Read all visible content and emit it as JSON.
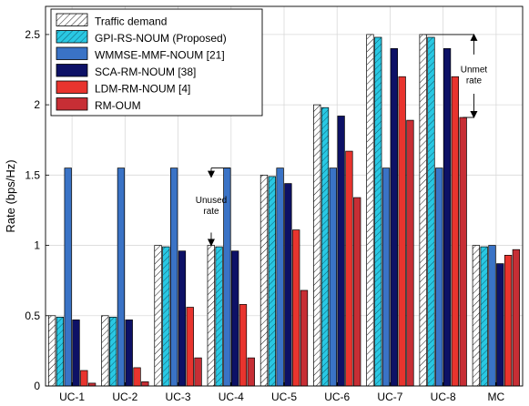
{
  "chart_data": {
    "type": "bar",
    "title": "",
    "xlabel": "",
    "ylabel": "Rate (bps/Hz)",
    "ylim": [
      0,
      2.7
    ],
    "yticks": [
      "0",
      "0.5",
      "1",
      "1.5",
      "2",
      "2.5"
    ],
    "grid": true,
    "legend_position": "top-left",
    "categories": [
      "UC-1",
      "UC-2",
      "UC-3",
      "UC-4",
      "UC-5",
      "UC-6",
      "UC-7",
      "UC-8",
      "MC"
    ],
    "series": [
      {
        "name": "Traffic demand",
        "color": "#ffffff",
        "pattern": "hatch",
        "values": [
          0.5,
          0.5,
          1.0,
          1.0,
          1.5,
          2.0,
          2.5,
          2.5,
          1.0
        ]
      },
      {
        "name": "GPI-RS-NOUM (Proposed)",
        "color": "#29c8e3",
        "pattern": "hatch",
        "values": [
          0.49,
          0.49,
          0.99,
          0.99,
          1.49,
          1.98,
          2.48,
          2.48,
          0.99
        ]
      },
      {
        "name": "WMMSE-MMF-NOUM [21]",
        "color": "#3a73c6",
        "values": [
          1.55,
          1.55,
          1.55,
          1.55,
          1.55,
          1.55,
          1.55,
          1.55,
          1.0
        ]
      },
      {
        "name": "SCA-RM-NOUM [38]",
        "color": "#0d1166",
        "values": [
          0.47,
          0.47,
          0.96,
          0.96,
          1.44,
          1.92,
          2.4,
          2.4,
          0.87
        ]
      },
      {
        "name": "LDM-RM-NOUM [4]",
        "color": "#e8342e",
        "values": [
          0.11,
          0.13,
          0.56,
          0.58,
          1.11,
          1.67,
          2.2,
          2.2,
          0.93
        ]
      },
      {
        "name": "RM-OUM",
        "color": "#c72e35",
        "values": [
          0.02,
          0.03,
          0.2,
          0.2,
          0.68,
          1.34,
          1.89,
          1.91,
          0.97
        ]
      }
    ],
    "annotations": [
      {
        "text_lines": [
          "Unused",
          "rate"
        ],
        "category": "UC-4",
        "from": 1.0,
        "to": 1.55
      },
      {
        "text_lines": [
          "Unmet",
          "rate"
        ],
        "category": "UC-8",
        "from": 1.91,
        "to": 2.5
      }
    ]
  }
}
